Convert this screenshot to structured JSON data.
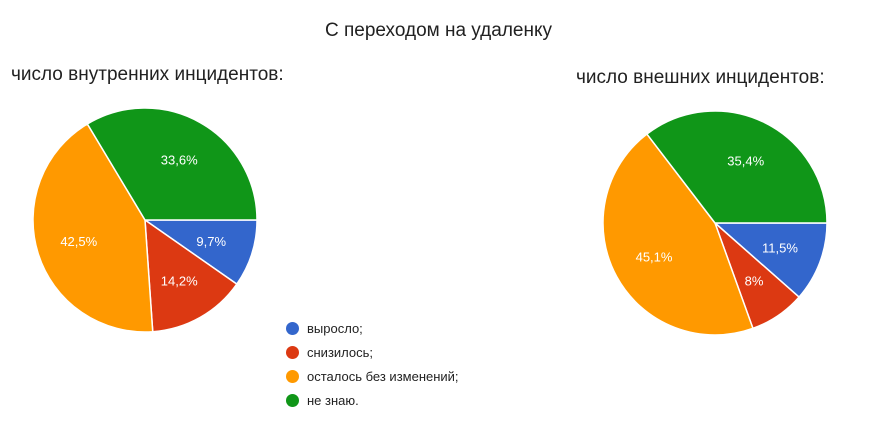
{
  "title": "С переходом на удаленку",
  "legend": {
    "items": [
      {
        "label": "выросло;",
        "color": "#3366cc"
      },
      {
        "label": "снизилось;",
        "color": "#dc3912"
      },
      {
        "label": "осталось без изменений;",
        "color": "#ff9900"
      },
      {
        "label": "не знаю.",
        "color": "#109618"
      }
    ]
  },
  "chart_data": [
    {
      "type": "pie",
      "title": "число внутренних инцидентов:",
      "categories": [
        "выросло;",
        "снизилось;",
        "осталось без изменений;",
        "не знаю."
      ],
      "values": [
        9.7,
        14.2,
        42.5,
        33.6
      ],
      "labels": [
        "9,7%",
        "14,2%",
        "42,5%",
        "33,6%"
      ],
      "colors": [
        "#3366cc",
        "#dc3912",
        "#ff9900",
        "#109618"
      ],
      "legend_position": "bottom-center"
    },
    {
      "type": "pie",
      "title": "число внешних инцидентов:",
      "categories": [
        "выросло;",
        "снизилось;",
        "осталось без изменений;",
        "не знаю."
      ],
      "values": [
        11.5,
        8.0,
        45.1,
        35.4
      ],
      "labels": [
        "11,5%",
        "8%",
        "45,1%",
        "35,4%"
      ],
      "colors": [
        "#3366cc",
        "#dc3912",
        "#ff9900",
        "#109618"
      ],
      "legend_position": "bottom-center"
    }
  ]
}
